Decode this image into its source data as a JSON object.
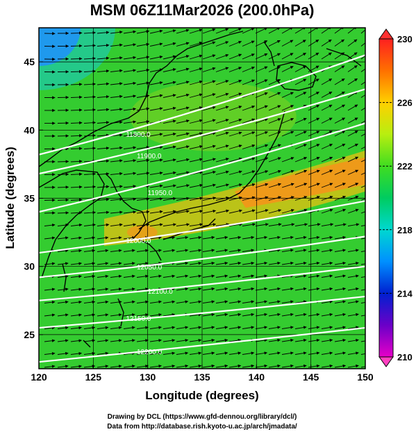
{
  "title": "MSM 06Z11Mar2026 (200.0hPa)",
  "xlabel": "Longitude (degrees)",
  "ylabel": "Latitude  (degrees)",
  "credits": [
    "Drawing by DCL (https://www.gfd-dennou.org/library/dcl/)",
    "Data from http://database.rish.kyoto-u.ac.jp/arch/jmadata/"
  ],
  "chart_data": {
    "type": "heatmap",
    "xlim": [
      120,
      150
    ],
    "ylim": [
      22.5,
      47.5
    ],
    "xticks": [
      120,
      125,
      130,
      135,
      140,
      145,
      150
    ],
    "yticks": [
      25,
      30,
      35,
      40,
      45
    ],
    "colorbar": {
      "min": 210,
      "max": 230,
      "ticks": [
        210,
        214,
        218,
        222,
        226,
        230
      ],
      "extend": "both"
    },
    "contours": [
      {
        "label": "11800.0",
        "lat_at_120": 38.2,
        "lat_at_150": 45.5
      },
      {
        "label": "11900.0",
        "lat_at_120": 36.8,
        "lat_at_150": 43.0
      },
      {
        "label": "11950.0",
        "lat_at_120": 34.0,
        "lat_at_150": 40.5
      },
      {
        "label": "12000.0",
        "lat_at_120": 31.0,
        "lat_at_150": 34.8
      },
      {
        "label": "12050.0",
        "lat_at_120": 29.2,
        "lat_at_150": 32.2
      },
      {
        "label": "12100.0",
        "lat_at_120": 27.5,
        "lat_at_150": 30.0
      },
      {
        "label": "12150.0",
        "lat_at_120": 25.5,
        "lat_at_150": 27.8
      },
      {
        "label": "12200.0",
        "lat_at_120": 23.0,
        "lat_at_150": 25.5
      }
    ],
    "colors": {
      "cold_northwest": "#1e90ff",
      "mid": "#33cc33",
      "warm_jet": "#ff8c1a"
    }
  }
}
